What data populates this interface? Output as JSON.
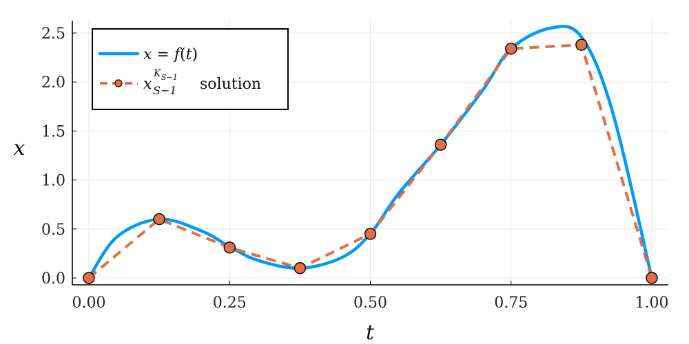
{
  "chart_data": {
    "type": "line",
    "xlabel": "t",
    "ylabel": "x",
    "xlim": [
      0.0,
      1.0
    ],
    "ylim": [
      0.0,
      2.55
    ],
    "xticks": [
      "0.00",
      "0.25",
      "0.50",
      "0.75",
      "1.00"
    ],
    "yticks": [
      "0.0",
      "0.5",
      "1.0",
      "1.5",
      "2.0",
      "2.5"
    ],
    "grid": true,
    "legend_position": "top-left",
    "series": [
      {
        "name": "x = f(t)",
        "style": "solid",
        "color": "#009AF9",
        "x": [
          0.0,
          0.05,
          0.125,
          0.2,
          0.25,
          0.3,
          0.375,
          0.45,
          0.5,
          0.55,
          0.625,
          0.7,
          0.75,
          0.82,
          0.875,
          0.93,
          1.0
        ],
        "y": [
          0.0,
          0.42,
          0.6,
          0.48,
          0.32,
          0.18,
          0.1,
          0.21,
          0.45,
          0.86,
          1.36,
          1.92,
          2.34,
          2.55,
          2.46,
          1.7,
          0.0
        ]
      },
      {
        "name": "x_{S-1}^{K_{S-1}} solution",
        "style": "dashed",
        "marker": "circle",
        "color": "#E26F46",
        "x": [
          0.0,
          0.125,
          0.25,
          0.375,
          0.5,
          0.625,
          0.75,
          0.875,
          1.0
        ],
        "y": [
          0.0,
          0.6,
          0.31,
          0.1,
          0.45,
          1.36,
          2.34,
          2.38,
          0.0
        ]
      }
    ],
    "legend": {
      "entry1": {
        "lhs": "x",
        "eq": " = ",
        "fn": "f",
        "paren_open": "(",
        "arg": "t",
        "paren_close": ")"
      },
      "entry2": {
        "base": "x",
        "sup": "K",
        "sup_sub": "S−1",
        "sub": "S−1",
        "suffix": " solution"
      }
    }
  }
}
